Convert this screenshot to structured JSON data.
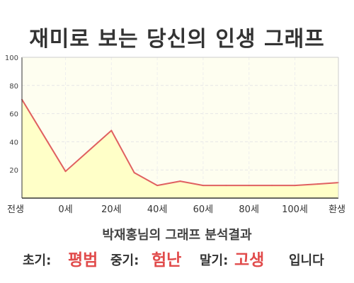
{
  "title": "재미로 보는 당신의 인생 그래프",
  "chart_data": {
    "type": "area",
    "x_tick_labels": [
      "전생",
      "0세",
      "20세",
      "40세",
      "60세",
      "80세",
      "100세",
      "환생"
    ],
    "x": [
      -19,
      0,
      20,
      30,
      40,
      50,
      60,
      70,
      80,
      90,
      100,
      110,
      119
    ],
    "y": [
      70,
      19,
      48,
      18,
      9,
      12,
      9,
      9,
      9,
      9,
      9,
      10,
      11
    ],
    "ylim": [
      0,
      100
    ],
    "y_ticks": [
      20,
      40,
      60,
      80,
      100
    ],
    "grid": true,
    "line_color": "#e06060",
    "fill_color": "#ffffc8"
  },
  "result": {
    "subtitle": "박재홍님의 그래프 분석결과",
    "early_label": "초기:",
    "early_value": "평범",
    "middle_label": "중기:",
    "middle_value": "험난",
    "late_label": "말기:",
    "late_value": "고생",
    "ending": "입니다"
  }
}
